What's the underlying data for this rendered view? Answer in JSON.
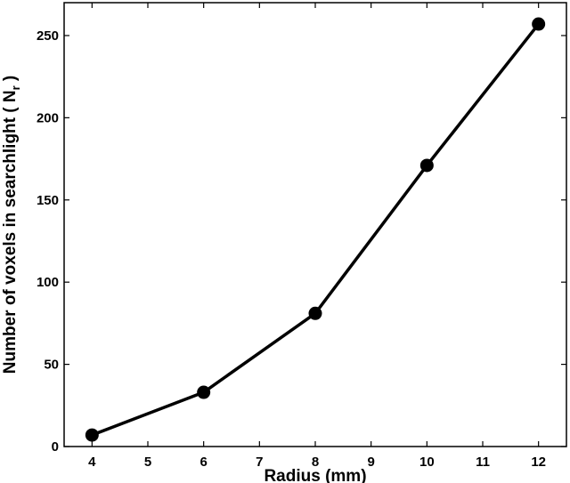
{
  "chart_data": {
    "type": "line",
    "title": "",
    "xlabel": "Radius (mm)",
    "ylabel": {
      "main": "Number of voxels in searchlight ( N",
      "subscript": "r",
      "close": " )"
    },
    "x": [
      4,
      6,
      8,
      10,
      12
    ],
    "series": [
      {
        "values": [
          7,
          33,
          81,
          171,
          257
        ],
        "color": "#000000"
      }
    ],
    "xlim": [
      3.5,
      12.5
    ],
    "ylim": [
      0,
      270
    ],
    "xticks": [
      4,
      5,
      6,
      7,
      8,
      9,
      10,
      11,
      12
    ],
    "yticks": [
      0,
      50,
      100,
      150,
      200,
      250
    ],
    "grid": false,
    "legend": "none"
  }
}
